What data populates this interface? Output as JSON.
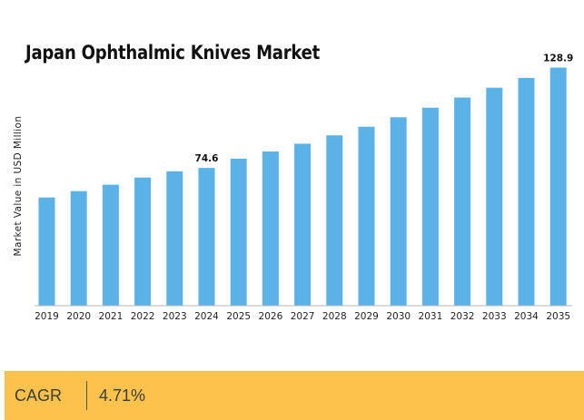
{
  "chart_data": {
    "type": "bar",
    "title": "Japan Ophthalmic Knives Market",
    "xlabel": "",
    "ylabel": "Market Value in USD Million",
    "categories": [
      "2019",
      "2020",
      "2021",
      "2022",
      "2023",
      "2024",
      "2025",
      "2026",
      "2027",
      "2028",
      "2029",
      "2030",
      "2031",
      "2032",
      "2033",
      "2034",
      "2035"
    ],
    "values": [
      58.6,
      62.0,
      65.5,
      69.4,
      72.7,
      74.6,
      79.6,
      83.5,
      87.7,
      92.2,
      96.9,
      102.0,
      107.2,
      112.7,
      118.0,
      123.3,
      128.9
    ],
    "data_labels": {
      "2024": "74.6",
      "2035": "128.9"
    },
    "ylim": [
      0,
      130
    ],
    "bar_color": "#5bb2e6"
  },
  "footer": {
    "cagr_label": "CAGR",
    "cagr_value": "4.71%",
    "background_color": "#fcc24b"
  }
}
